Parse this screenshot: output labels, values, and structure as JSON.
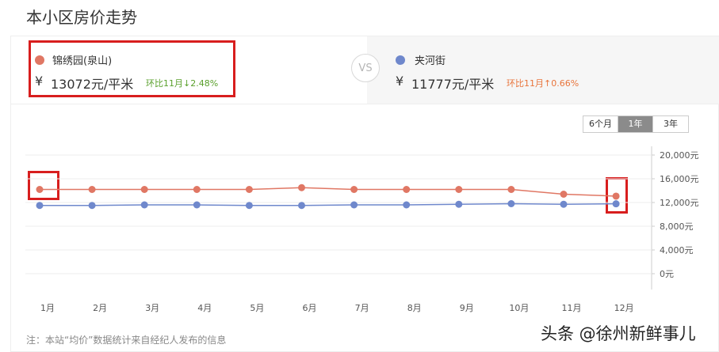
{
  "page": {
    "title": "本小区房价走势"
  },
  "compare": {
    "left": {
      "name": "锦绣园(泉山)",
      "currency": "¥",
      "price": "13072元/平米",
      "ratio": "环比11月↓2.48%",
      "dot_color": "#e07764",
      "ratio_color": "#5aa02c"
    },
    "vs": "VS",
    "right": {
      "name": "夹河街",
      "currency": "¥",
      "price": "11777元/平米",
      "ratio": "环比11月↑0.66%",
      "dot_color": "#6f88cc",
      "ratio_color": "#e8743b"
    }
  },
  "range_tabs": [
    {
      "label": "6个月",
      "active": false
    },
    {
      "label": "1年",
      "active": true
    },
    {
      "label": "3年",
      "active": false
    }
  ],
  "chart_data": {
    "type": "line",
    "categories": [
      "1月",
      "2月",
      "3月",
      "4月",
      "5月",
      "6月",
      "7月",
      "8月",
      "9月",
      "10月",
      "11月",
      "12月"
    ],
    "series": [
      {
        "name": "锦绣园(泉山)",
        "color": "#e07764",
        "values": [
          14200,
          14200,
          14200,
          14200,
          14200,
          14500,
          14200,
          14200,
          14200,
          14200,
          13400,
          13072
        ]
      },
      {
        "name": "夹河街",
        "color": "#6f88cc",
        "values": [
          11500,
          11500,
          11600,
          11600,
          11500,
          11500,
          11600,
          11600,
          11700,
          11800,
          11700,
          11777
        ]
      }
    ],
    "ylim": [
      0,
      20000
    ],
    "yticks": [
      0,
      4000,
      8000,
      12000,
      16000,
      20000
    ],
    "ytick_labels": [
      "0元",
      "4,000元",
      "8,000元",
      "12,000元",
      "16,000元",
      "20,000元"
    ],
    "grid": true,
    "legend": "none"
  },
  "footer": {
    "note": "注：本站“均价”数据统计来自经纪人发布的信息",
    "watermark": "头条 @徐州新鲜事儿"
  },
  "highlight_color": "#d81e1e"
}
